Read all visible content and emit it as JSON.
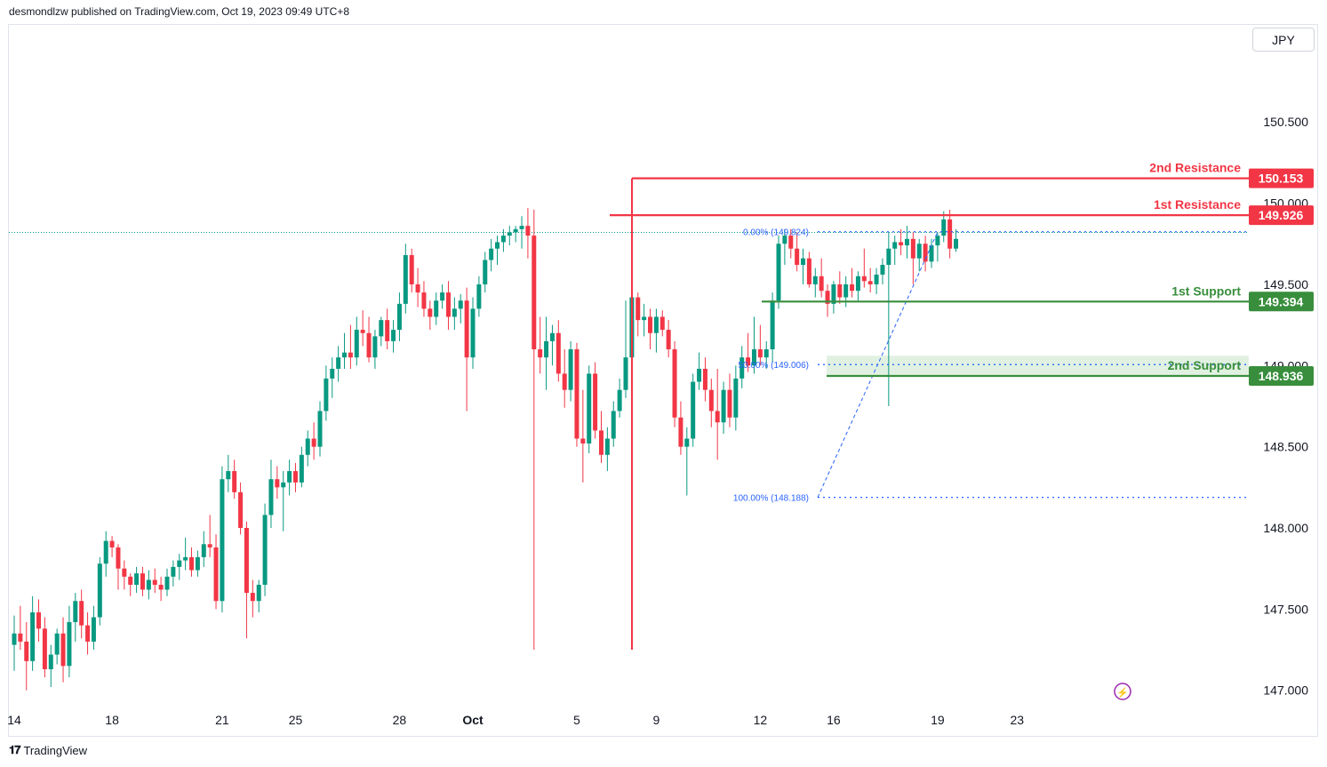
{
  "header": {
    "published_by": "desmondlzw published on TradingView.com, Oct 19, 2023 09:49 UTC+8"
  },
  "currency": "JPY",
  "footer": {
    "brand": "TradingView",
    "logo_icon": "tradingview-logo-icon"
  },
  "colors": {
    "up": "#089981",
    "down": "#f23645",
    "resistance": "#f23645",
    "support": "#388e3c",
    "fib": "#2962ff",
    "zone": "#c8e6c9",
    "replay_icon": "#9c27b0"
  },
  "chart_data": {
    "type": "candlestick",
    "symbol_currency": "JPY",
    "ylim": [
      146.9,
      150.95
    ],
    "y_ticks": [
      "147.000",
      "147.500",
      "148.000",
      "148.500",
      "149.000",
      "149.500",
      "150.000",
      "150.500"
    ],
    "x_ticks": [
      {
        "label": "14",
        "i": 0
      },
      {
        "label": "18",
        "i": 16
      },
      {
        "label": "21",
        "i": 34
      },
      {
        "label": "25",
        "i": 46
      },
      {
        "label": "28",
        "i": 63
      },
      {
        "label": "Oct",
        "i": 75
      },
      {
        "label": "5",
        "i": 92
      },
      {
        "label": "9",
        "i": 105
      },
      {
        "label": "12",
        "i": 122
      },
      {
        "label": "16",
        "i": 134
      },
      {
        "label": "19",
        "i": 151
      },
      {
        "label": "23",
        "i": 164
      }
    ],
    "levels": [
      {
        "label": "2nd Resistance",
        "value": 150.153,
        "value_text": "150.153",
        "kind": "resistance"
      },
      {
        "label": "1st Resistance",
        "value": 149.926,
        "value_text": "149.926",
        "kind": "resistance"
      },
      {
        "label": "1st Support",
        "value": 149.394,
        "value_text": "149.394",
        "kind": "support"
      },
      {
        "label": "2nd Support",
        "value": 148.936,
        "value_text": "148.936",
        "kind": "support"
      }
    ],
    "fibonacci": [
      {
        "label": "0.00% (149.824)",
        "value": 149.824
      },
      {
        "label": "50.00% (149.006)",
        "value": 149.006
      },
      {
        "label": "100.00% (148.188)",
        "value": 148.188
      }
    ],
    "last_price": 149.82,
    "candles": [
      [
        147.28,
        147.46,
        147.12,
        147.35
      ],
      [
        147.35,
        147.52,
        147.25,
        147.3
      ],
      [
        147.3,
        147.42,
        147.0,
        147.18
      ],
      [
        147.18,
        147.58,
        147.12,
        147.48
      ],
      [
        147.48,
        147.56,
        147.3,
        147.38
      ],
      [
        147.38,
        147.45,
        147.08,
        147.13
      ],
      [
        147.13,
        147.28,
        147.02,
        147.22
      ],
      [
        147.22,
        147.38,
        147.16,
        147.35
      ],
      [
        147.35,
        147.45,
        147.05,
        147.15
      ],
      [
        147.15,
        147.52,
        147.08,
        147.42
      ],
      [
        147.42,
        147.6,
        147.3,
        147.55
      ],
      [
        147.55,
        147.62,
        147.32,
        147.4
      ],
      [
        147.4,
        147.48,
        147.22,
        147.3
      ],
      [
        147.3,
        147.52,
        147.25,
        147.45
      ],
      [
        147.45,
        147.82,
        147.4,
        147.78
      ],
      [
        147.78,
        147.98,
        147.7,
        147.92
      ],
      [
        147.92,
        147.95,
        147.82,
        147.88
      ],
      [
        147.88,
        147.9,
        147.62,
        147.75
      ],
      [
        147.75,
        147.8,
        147.62,
        147.7
      ],
      [
        147.7,
        147.72,
        147.58,
        147.65
      ],
      [
        147.65,
        147.76,
        147.6,
        147.72
      ],
      [
        147.72,
        147.76,
        147.58,
        147.62
      ],
      [
        147.62,
        147.74,
        147.56,
        147.68
      ],
      [
        147.68,
        147.75,
        147.6,
        147.65
      ],
      [
        147.65,
        147.7,
        147.55,
        147.62
      ],
      [
        147.62,
        147.75,
        147.58,
        147.7
      ],
      [
        147.7,
        147.8,
        147.64,
        147.76
      ],
      [
        147.76,
        147.84,
        147.68,
        147.8
      ],
      [
        147.8,
        147.94,
        147.74,
        147.82
      ],
      [
        147.82,
        147.88,
        147.7,
        147.74
      ],
      [
        147.74,
        147.86,
        147.7,
        147.82
      ],
      [
        147.82,
        147.98,
        147.76,
        147.9
      ],
      [
        147.9,
        148.08,
        147.82,
        147.88
      ],
      [
        147.88,
        147.96,
        147.5,
        147.55
      ],
      [
        147.55,
        148.38,
        147.48,
        148.3
      ],
      [
        148.3,
        148.45,
        148.22,
        148.35
      ],
      [
        148.35,
        148.42,
        148.18,
        148.22
      ],
      [
        148.22,
        148.28,
        147.96,
        148.0
      ],
      [
        148.0,
        148.04,
        147.32,
        147.6
      ],
      [
        147.6,
        147.68,
        147.45,
        147.55
      ],
      [
        147.55,
        147.68,
        147.48,
        147.65
      ],
      [
        147.65,
        148.15,
        147.58,
        148.08
      ],
      [
        148.08,
        148.42,
        148.0,
        148.3
      ],
      [
        148.3,
        148.38,
        148.18,
        148.25
      ],
      [
        148.25,
        148.35,
        147.98,
        148.28
      ],
      [
        148.28,
        148.42,
        148.2,
        148.35
      ],
      [
        148.35,
        148.4,
        148.22,
        148.28
      ],
      [
        148.28,
        148.5,
        148.25,
        148.45
      ],
      [
        148.45,
        148.6,
        148.38,
        148.55
      ],
      [
        148.55,
        148.65,
        148.42,
        148.5
      ],
      [
        148.5,
        148.78,
        148.44,
        148.72
      ],
      [
        148.72,
        149.0,
        148.66,
        148.92
      ],
      [
        148.92,
        149.05,
        148.8,
        148.98
      ],
      [
        148.98,
        149.12,
        148.9,
        149.05
      ],
      [
        149.05,
        149.2,
        148.98,
        149.08
      ],
      [
        149.08,
        149.25,
        148.98,
        149.05
      ],
      [
        149.05,
        149.3,
        149.0,
        149.22
      ],
      [
        149.22,
        149.34,
        149.12,
        149.2
      ],
      [
        149.2,
        149.3,
        149.02,
        149.05
      ],
      [
        149.05,
        149.22,
        148.98,
        149.18
      ],
      [
        149.18,
        149.3,
        149.12,
        149.28
      ],
      [
        149.28,
        149.35,
        149.1,
        149.15
      ],
      [
        149.15,
        149.28,
        149.08,
        149.22
      ],
      [
        149.22,
        149.45,
        149.15,
        149.38
      ],
      [
        149.38,
        149.75,
        149.32,
        149.68
      ],
      [
        149.68,
        149.72,
        149.45,
        149.5
      ],
      [
        149.5,
        149.6,
        149.36,
        149.45
      ],
      [
        149.45,
        149.52,
        149.3,
        149.35
      ],
      [
        149.35,
        149.4,
        149.22,
        149.3
      ],
      [
        149.3,
        149.45,
        149.25,
        149.4
      ],
      [
        149.4,
        149.5,
        149.35,
        149.45
      ],
      [
        149.45,
        149.52,
        149.22,
        149.3
      ],
      [
        149.3,
        149.42,
        149.22,
        149.35
      ],
      [
        149.35,
        149.44,
        149.26,
        149.4
      ],
      [
        149.4,
        149.48,
        148.72,
        149.05
      ],
      [
        149.05,
        149.42,
        148.98,
        149.35
      ],
      [
        149.35,
        149.55,
        149.3,
        149.5
      ],
      [
        149.5,
        149.7,
        149.45,
        149.65
      ],
      [
        149.65,
        149.78,
        149.58,
        149.72
      ],
      [
        149.72,
        149.8,
        149.62,
        149.76
      ],
      [
        149.76,
        149.84,
        149.7,
        149.8
      ],
      [
        149.8,
        149.86,
        149.74,
        149.82
      ],
      [
        149.82,
        149.86,
        149.76,
        149.84
      ],
      [
        149.84,
        149.92,
        149.72,
        149.86
      ],
      [
        149.86,
        149.97,
        149.66,
        149.8
      ],
      [
        149.8,
        149.96,
        147.25,
        149.1
      ],
      [
        149.1,
        149.3,
        148.95,
        149.05
      ],
      [
        149.05,
        149.3,
        148.85,
        149.15
      ],
      [
        149.15,
        149.25,
        149.0,
        149.2
      ],
      [
        149.2,
        149.28,
        148.9,
        148.95
      ],
      [
        148.95,
        149.1,
        148.74,
        148.85
      ],
      [
        148.85,
        149.15,
        148.78,
        149.1
      ],
      [
        149.1,
        149.14,
        148.5,
        148.55
      ],
      [
        148.55,
        148.85,
        148.28,
        148.52
      ],
      [
        148.52,
        149.0,
        148.46,
        148.95
      ],
      [
        148.95,
        149.02,
        148.55,
        148.6
      ],
      [
        148.6,
        148.72,
        148.4,
        148.45
      ],
      [
        148.45,
        148.62,
        148.35,
        148.55
      ],
      [
        148.55,
        148.78,
        148.5,
        148.72
      ],
      [
        148.72,
        148.92,
        148.68,
        148.85
      ],
      [
        148.85,
        149.4,
        148.8,
        149.05
      ],
      [
        149.05,
        149.52,
        148.98,
        149.42
      ],
      [
        149.42,
        149.45,
        149.18,
        149.28
      ],
      [
        149.28,
        149.38,
        149.18,
        149.3
      ],
      [
        149.3,
        149.35,
        149.1,
        149.2
      ],
      [
        149.2,
        149.35,
        149.08,
        149.3
      ],
      [
        149.3,
        149.34,
        149.18,
        149.22
      ],
      [
        149.22,
        149.28,
        149.05,
        149.1
      ],
      [
        149.1,
        149.15,
        148.62,
        148.68
      ],
      [
        148.68,
        148.78,
        148.45,
        148.5
      ],
      [
        148.5,
        148.62,
        148.2,
        148.55
      ],
      [
        148.55,
        148.95,
        148.5,
        148.9
      ],
      [
        148.9,
        149.08,
        148.85,
        148.98
      ],
      [
        148.98,
        149.05,
        148.78,
        148.85
      ],
      [
        148.85,
        148.92,
        148.62,
        148.72
      ],
      [
        148.72,
        148.98,
        148.42,
        148.65
      ],
      [
        148.65,
        148.9,
        148.58,
        148.85
      ],
      [
        148.85,
        148.95,
        148.62,
        148.68
      ],
      [
        148.68,
        149.0,
        148.6,
        148.92
      ],
      [
        148.92,
        149.12,
        148.86,
        149.05
      ],
      [
        149.05,
        149.2,
        148.96,
        149.0
      ],
      [
        149.0,
        149.3,
        148.95,
        149.1
      ],
      [
        149.1,
        149.25,
        149.0,
        149.05
      ],
      [
        149.05,
        149.15,
        148.98,
        149.1
      ],
      [
        149.1,
        149.45,
        149.02,
        149.4
      ],
      [
        149.4,
        149.8,
        149.35,
        149.75
      ],
      [
        149.75,
        149.84,
        149.62,
        149.8
      ],
      [
        149.8,
        149.84,
        149.66,
        149.72
      ],
      [
        149.72,
        149.82,
        149.58,
        149.62
      ],
      [
        149.62,
        149.72,
        149.5,
        149.66
      ],
      [
        149.66,
        149.7,
        149.48,
        149.5
      ],
      [
        149.5,
        149.6,
        149.42,
        149.55
      ],
      [
        149.55,
        149.66,
        149.42,
        149.46
      ],
      [
        149.46,
        149.5,
        149.3,
        149.38
      ],
      [
        149.38,
        149.52,
        149.32,
        149.5
      ],
      [
        149.5,
        149.58,
        149.38,
        149.42
      ],
      [
        149.42,
        149.55,
        149.36,
        149.5
      ],
      [
        149.5,
        149.6,
        149.42,
        149.46
      ],
      [
        149.46,
        149.58,
        149.4,
        149.55
      ],
      [
        149.55,
        149.72,
        149.48,
        149.52
      ],
      [
        149.52,
        149.6,
        149.45,
        149.5
      ],
      [
        149.5,
        149.6,
        149.44,
        149.56
      ],
      [
        149.56,
        149.66,
        149.5,
        149.62
      ],
      [
        149.62,
        149.82,
        148.75,
        149.72
      ],
      [
        149.72,
        149.8,
        149.62,
        149.76
      ],
      [
        149.76,
        149.84,
        149.68,
        149.74
      ],
      [
        149.74,
        149.86,
        149.66,
        149.78
      ],
      [
        149.78,
        149.82,
        149.5,
        149.66
      ],
      [
        149.66,
        149.78,
        149.58,
        149.75
      ],
      [
        149.75,
        149.8,
        149.58,
        149.64
      ],
      [
        149.64,
        149.78,
        149.6,
        149.74
      ],
      [
        149.74,
        149.82,
        149.64,
        149.8
      ],
      [
        149.8,
        149.95,
        149.76,
        149.9
      ],
      [
        149.9,
        149.96,
        149.66,
        149.72
      ],
      [
        149.72,
        149.84,
        149.7,
        149.78
      ]
    ]
  }
}
